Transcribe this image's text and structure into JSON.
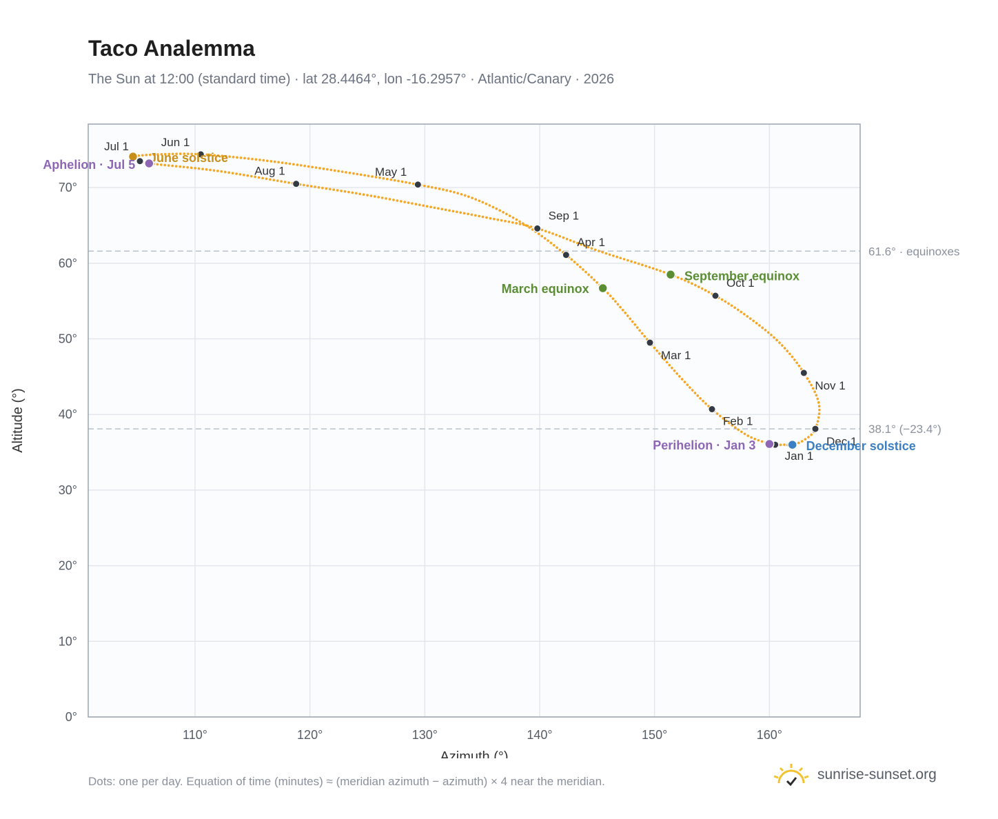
{
  "header": {
    "title": "Taco Analemma",
    "subtitle": "The Sun at 12:00 (standard time) · lat 28.4464°, lon -16.2957° · Atlantic/Canary · 2026"
  },
  "footer": {
    "note": "Dots: one per day. Equation of time (minutes) ≈ (meridian azimuth − azimuth) × 4 near the meridian.",
    "brand": "sunrise-sunset.org",
    "brand_icon": "sun-icon"
  },
  "chart_data": {
    "type": "scatter",
    "xlabel": "Azimuth (°)",
    "ylabel": "Altitude (°)",
    "xlim": [
      100.7,
      167.9
    ],
    "ylim": [
      0,
      78.4
    ],
    "xticks": [
      110,
      120,
      130,
      140,
      150,
      160
    ],
    "xtick_labels": [
      "110°",
      "120°",
      "130°",
      "140°",
      "150°",
      "160°"
    ],
    "yticks": [
      0,
      10,
      20,
      30,
      40,
      50,
      60,
      70
    ],
    "ytick_labels": [
      "0°",
      "10°",
      "20°",
      "30°",
      "40°",
      "50°",
      "60°",
      "70°"
    ],
    "grid": true,
    "path_color": "#f5a623",
    "month_marker_color": "#333a44",
    "reference_lines": [
      {
        "y": 61.6,
        "label": "61.6° · equinoxes"
      },
      {
        "y": 38.1,
        "label": "38.1° (−23.4°)"
      }
    ],
    "analemma_path": [
      {
        "az": 161.3,
        "alt": 36.0
      },
      {
        "az": 160.2,
        "alt": 36.1
      },
      {
        "az": 158.0,
        "alt": 37.3
      },
      {
        "az": 155.0,
        "alt": 40.7
      },
      {
        "az": 152.5,
        "alt": 44.5
      },
      {
        "az": 149.6,
        "alt": 49.5
      },
      {
        "az": 147.3,
        "alt": 53.7
      },
      {
        "az": 145.5,
        "alt": 56.7
      },
      {
        "az": 142.3,
        "alt": 61.1
      },
      {
        "az": 138.5,
        "alt": 65.3
      },
      {
        "az": 134.0,
        "alt": 68.7
      },
      {
        "az": 129.4,
        "alt": 70.4
      },
      {
        "az": 122.0,
        "alt": 72.3
      },
      {
        "az": 116.0,
        "alt": 73.6
      },
      {
        "az": 110.5,
        "alt": 74.4
      },
      {
        "az": 107.0,
        "alt": 74.4
      },
      {
        "az": 104.6,
        "alt": 74.1
      },
      {
        "az": 105.2,
        "alt": 73.5
      },
      {
        "az": 106.0,
        "alt": 73.2
      },
      {
        "az": 112.0,
        "alt": 72.2
      },
      {
        "az": 118.8,
        "alt": 70.5
      },
      {
        "az": 125.0,
        "alt": 69.0
      },
      {
        "az": 131.0,
        "alt": 67.3
      },
      {
        "az": 135.5,
        "alt": 66.0
      },
      {
        "az": 139.8,
        "alt": 64.6
      },
      {
        "az": 145.0,
        "alt": 61.7
      },
      {
        "az": 151.4,
        "alt": 58.5
      },
      {
        "az": 155.3,
        "alt": 55.7
      },
      {
        "az": 158.5,
        "alt": 52.5
      },
      {
        "az": 161.0,
        "alt": 49.3
      },
      {
        "az": 163.0,
        "alt": 45.5
      },
      {
        "az": 164.3,
        "alt": 41.5
      },
      {
        "az": 164.0,
        "alt": 38.1
      },
      {
        "az": 163.0,
        "alt": 36.6
      },
      {
        "az": 162.0,
        "alt": 36.0
      },
      {
        "az": 161.3,
        "alt": 36.0
      }
    ],
    "month_markers": [
      {
        "label": "Jan 1",
        "az": 160.5,
        "alt": 36.0,
        "anchor": "start",
        "dx": 14,
        "dy": 22
      },
      {
        "label": "Feb 1",
        "az": 155.0,
        "alt": 40.7,
        "anchor": "start",
        "dx": 16,
        "dy": 23
      },
      {
        "label": "Mar 1",
        "az": 149.6,
        "alt": 49.5,
        "anchor": "start",
        "dx": 16,
        "dy": 24
      },
      {
        "label": "Apr 1",
        "az": 142.3,
        "alt": 61.1,
        "anchor": "start",
        "dx": 16,
        "dy": -13
      },
      {
        "label": "May 1",
        "az": 129.4,
        "alt": 70.4,
        "anchor": "end",
        "dx": -16,
        "dy": -13
      },
      {
        "label": "Jun 1",
        "az": 110.5,
        "alt": 74.4,
        "anchor": "end",
        "dx": -16,
        "dy": -12
      },
      {
        "label": "Jul 1",
        "az": 105.2,
        "alt": 73.5,
        "anchor": "end",
        "dx": -16,
        "dy": -16
      },
      {
        "label": "Aug 1",
        "az": 118.8,
        "alt": 70.5,
        "anchor": "end",
        "dx": -16,
        "dy": -13
      },
      {
        "label": "Sep 1",
        "az": 139.8,
        "alt": 64.6,
        "anchor": "start",
        "dx": 16,
        "dy": -13
      },
      {
        "label": "Oct 1",
        "az": 155.3,
        "alt": 55.7,
        "anchor": "start",
        "dx": 16,
        "dy": -13
      },
      {
        "label": "Nov 1",
        "az": 163.0,
        "alt": 45.5,
        "anchor": "start",
        "dx": 16,
        "dy": 24
      },
      {
        "label": "Dec 1",
        "az": 164.0,
        "alt": 38.1,
        "anchor": "start",
        "dx": 16,
        "dy": 24
      }
    ],
    "events": [
      {
        "label": "June solstice",
        "az": 104.6,
        "alt": 74.1,
        "color": "#c8901a",
        "anchor": "start",
        "dx": 24,
        "dy": 8
      },
      {
        "label": "Aphelion · Jul 5",
        "az": 106.0,
        "alt": 73.2,
        "color": "#8e66b6",
        "anchor": "end",
        "dx": -20,
        "dy": 8
      },
      {
        "label": "March equinox",
        "az": 145.5,
        "alt": 56.7,
        "color": "#5b8e33",
        "anchor": "end",
        "dx": -20,
        "dy": 7
      },
      {
        "label": "September equinox",
        "az": 151.4,
        "alt": 58.5,
        "color": "#5b8e33",
        "anchor": "start",
        "dx": 20,
        "dy": 8
      },
      {
        "label": "Perihelion · Jan 3",
        "az": 160.0,
        "alt": 36.1,
        "color": "#8e66b6",
        "anchor": "end",
        "dx": -20,
        "dy": 8
      },
      {
        "label": "December solstice",
        "az": 162.0,
        "alt": 36.0,
        "color": "#3b7fc4",
        "anchor": "start",
        "dx": 20,
        "dy": 8
      }
    ]
  }
}
